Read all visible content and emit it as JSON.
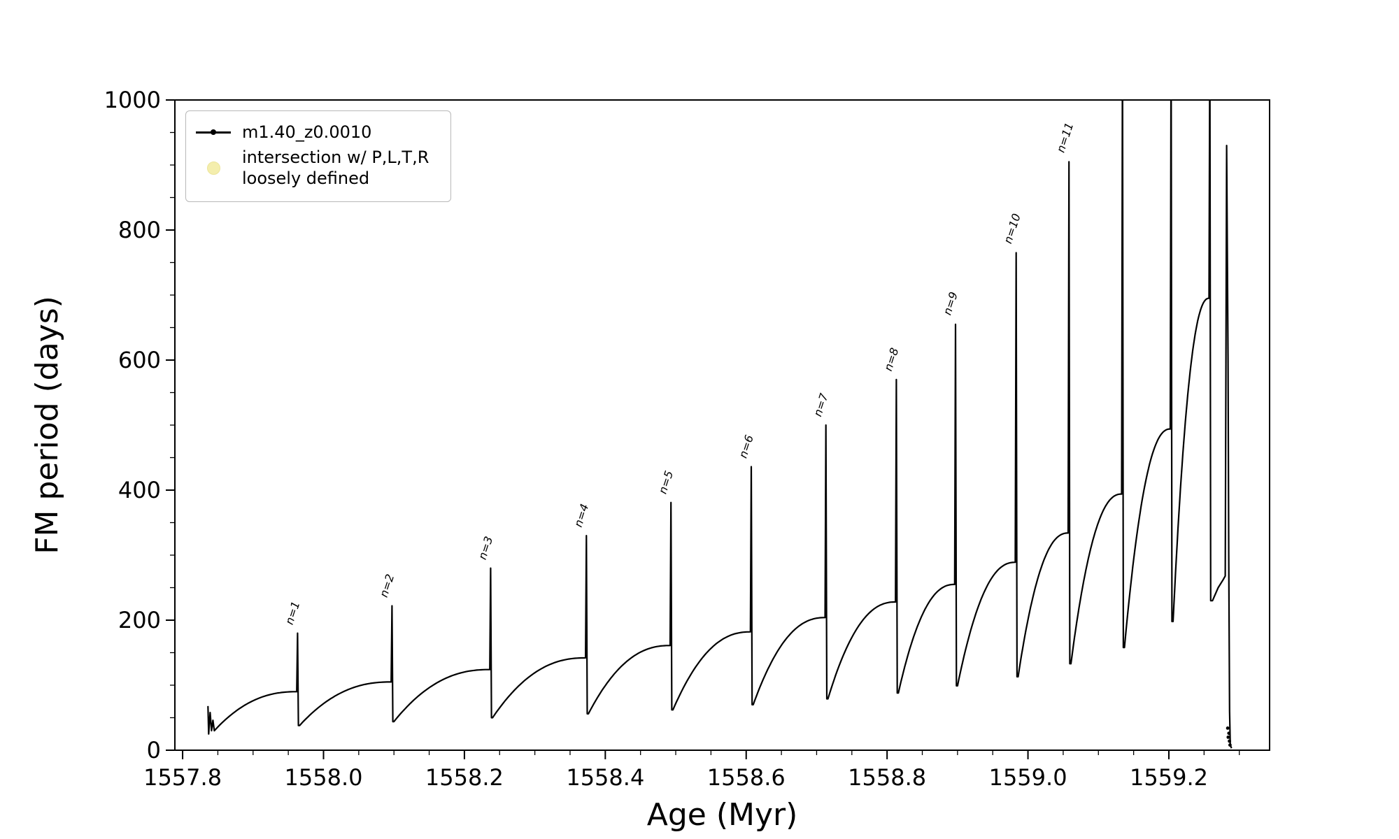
{
  "chart_data": {
    "type": "line",
    "title": "",
    "xlabel": "Age (Myr)",
    "ylabel": "FM period (days)",
    "xlim": [
      1557.789,
      1559.343
    ],
    "ylim": [
      0,
      1000
    ],
    "x_ticks": [
      1557.8,
      1558.0,
      1558.2,
      1558.4,
      1558.6,
      1558.8,
      1559.0,
      1559.2
    ],
    "x_tick_labels": [
      "1557.8",
      "1558.0",
      "1558.2",
      "1558.4",
      "1558.6",
      "1558.8",
      "1559.0",
      "1559.2"
    ],
    "x_minor_step": 0.05,
    "y_ticks": [
      0,
      200,
      400,
      600,
      800,
      1000
    ],
    "y_tick_labels": [
      "0",
      "200",
      "400",
      "600",
      "800",
      "1000"
    ],
    "y_minor_step": 50,
    "grid": false,
    "legend": {
      "position": "upper left",
      "entries": [
        {
          "label": "m1.40_z0.0010",
          "marker": "line-dot",
          "color": "#000000"
        },
        {
          "label": "intersection w/ P,L,T,R\nloosely defined",
          "marker": "circle",
          "color": "#f3eda5"
        }
      ]
    },
    "series": [
      {
        "name": "m1.40_z0.0010",
        "color": "#000000",
        "initial_transient": [
          [
            1557.836,
            68
          ],
          [
            1557.837,
            25
          ],
          [
            1557.839,
            58
          ],
          [
            1557.841,
            30
          ],
          [
            1557.843,
            46
          ],
          [
            1557.845,
            30
          ]
        ],
        "cycles": [
          [
            1557.845,
            1557.962,
            30,
            90,
            180,
            38
          ],
          [
            1557.966,
            1558.096,
            38,
            105,
            222,
            44
          ],
          [
            1558.1,
            1558.236,
            44,
            124,
            280,
            50
          ],
          [
            1558.24,
            1558.372,
            50,
            142,
            330,
            56
          ],
          [
            1558.376,
            1558.492,
            56,
            161,
            381,
            62
          ],
          [
            1558.496,
            1558.606,
            62,
            182,
            436,
            70
          ],
          [
            1558.61,
            1558.712,
            70,
            204,
            500,
            79
          ],
          [
            1558.716,
            1558.812,
            79,
            228,
            570,
            88
          ],
          [
            1558.816,
            1558.896,
            88,
            255,
            655,
            99
          ],
          [
            1558.9,
            1558.982,
            99,
            289,
            765,
            113
          ],
          [
            1558.986,
            1559.057,
            113,
            334,
            905,
            133
          ],
          [
            1559.061,
            1559.133,
            133,
            394,
            1100,
            158
          ],
          [
            1559.137,
            1559.202,
            158,
            494,
            1100,
            198
          ],
          [
            1559.206,
            1559.257,
            198,
            695,
            1100,
            230
          ]
        ],
        "tail_points": [
          [
            1559.262,
            230
          ],
          [
            1559.27,
            250
          ],
          [
            1559.277,
            262
          ],
          [
            1559.28,
            268
          ],
          [
            1559.282,
            930
          ],
          [
            1559.284,
            600
          ],
          [
            1559.285,
            300
          ],
          [
            1559.2862,
            60
          ],
          [
            1559.2872,
            8
          ],
          [
            1559.289,
            3
          ]
        ],
        "scatter_cluster": [
          [
            1559.2835,
            34
          ],
          [
            1559.2842,
            20
          ],
          [
            1559.2852,
            26
          ],
          [
            1559.286,
            14
          ],
          [
            1559.2868,
            8
          ]
        ]
      }
    ],
    "annotations": [
      {
        "text": "n=1",
        "x": 1557.956,
        "y": 192
      },
      {
        "text": "n=2",
        "x": 1558.09,
        "y": 234
      },
      {
        "text": "n=3",
        "x": 1558.23,
        "y": 292
      },
      {
        "text": "n=4",
        "x": 1558.366,
        "y": 342
      },
      {
        "text": "n=5",
        "x": 1558.486,
        "y": 393
      },
      {
        "text": "n=6",
        "x": 1558.6,
        "y": 448
      },
      {
        "text": "n=7",
        "x": 1558.706,
        "y": 512
      },
      {
        "text": "n=8",
        "x": 1558.806,
        "y": 582
      },
      {
        "text": "n=9",
        "x": 1558.89,
        "y": 668
      },
      {
        "text": "n=10",
        "x": 1558.976,
        "y": 778
      },
      {
        "text": "n=11",
        "x": 1559.051,
        "y": 918
      }
    ]
  }
}
